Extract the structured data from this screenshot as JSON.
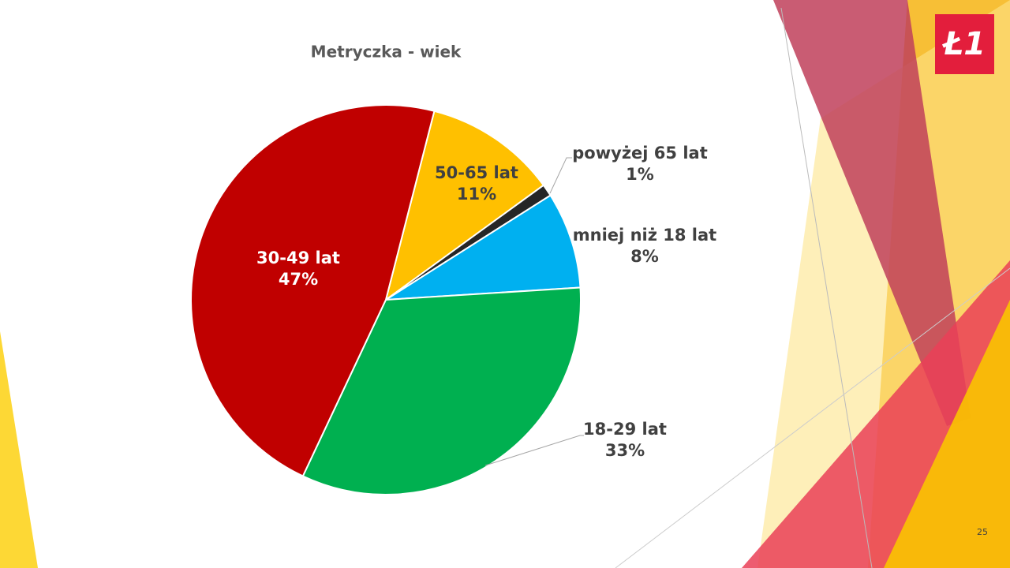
{
  "chart_data": {
    "type": "pie",
    "title": "Metryczka - wiek",
    "categories": [
      "50-65 lat",
      "powyżej 65 lat",
      "mniej niż 18 lat",
      "18-29 lat",
      "30-49 lat"
    ],
    "values": [
      11,
      1,
      8,
      33,
      47
    ],
    "value_labels": [
      "11%",
      "1%",
      "8%",
      "33%",
      "47%"
    ],
    "colors": [
      "#ffc000",
      "#262626",
      "#00b0f0",
      "#00b050",
      "#c00000"
    ]
  },
  "logo": "Ł1",
  "slide_number": "25"
}
